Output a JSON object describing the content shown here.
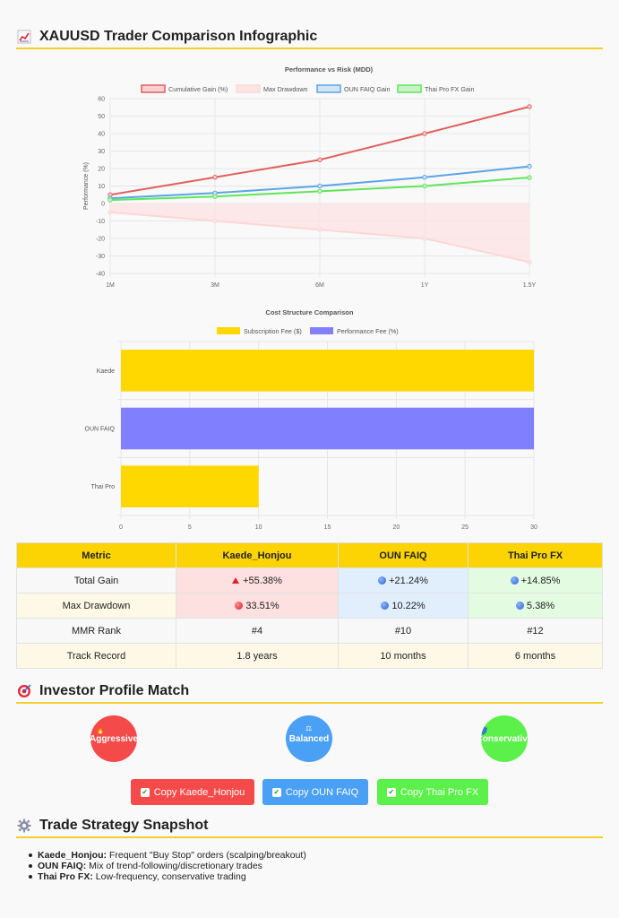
{
  "header": {
    "icon": "chart-increasing-icon",
    "title": "XAUUSD Trader Comparison Infographic"
  },
  "chart_data": [
    {
      "type": "line",
      "title": "Performance vs Risk (MDD)",
      "ylabel": "Performance (%)",
      "xlabel": "",
      "categories": [
        "1M",
        "3M",
        "6M",
        "1Y",
        "1.5Y"
      ],
      "ylim": [
        -40,
        60
      ],
      "yticks": [
        60,
        50,
        40,
        30,
        20,
        10,
        0,
        -10,
        -20,
        -30,
        -40
      ],
      "legend_position": "top",
      "grid": true,
      "series": [
        {
          "name": "Cumulative Gain (%)",
          "color": "#e0605e",
          "fill": "#f8d0cf",
          "values": [
            5,
            15,
            25,
            40,
            55.38
          ]
        },
        {
          "name": "Max Drawdown",
          "color": "#fdd7d7",
          "fill": "#fde4e4",
          "values": [
            -5,
            -10,
            -15,
            -20,
            -33.51
          ],
          "filled": true
        },
        {
          "name": "OUN FAIQ Gain",
          "color": "#5aa5e6",
          "fill": "#d4e4f3",
          "values": [
            3,
            6,
            10,
            15,
            21.24
          ]
        },
        {
          "name": "Thai Pro FX Gain",
          "color": "#5ee65a",
          "fill": "#c9f2c7",
          "values": [
            2,
            4,
            7,
            10,
            14.85
          ]
        }
      ]
    },
    {
      "type": "bar",
      "orientation": "horizontal",
      "title": "Cost Structure Comparison",
      "categories": [
        "Kaede",
        "OUN FAIQ",
        "Thai Pro"
      ],
      "xlim": [
        0,
        30
      ],
      "xticks": [
        0,
        5,
        10,
        15,
        20,
        25,
        30
      ],
      "legend_position": "top",
      "grid": true,
      "series": [
        {
          "name": "Subscription Fee ($)",
          "color": "#ffd800",
          "values": [
            30,
            null,
            10
          ]
        },
        {
          "name": "Performance Fee (%)",
          "color": "#8080ff",
          "values": [
            null,
            30,
            null
          ]
        }
      ]
    }
  ],
  "table": {
    "headers": [
      "Metric",
      "Kaede_Honjou",
      "OUN FAIQ",
      "Thai Pro FX"
    ],
    "rows": [
      {
        "metric": "Total Gain",
        "kaede": "+55.38%",
        "oun": "+21.24%",
        "thai": "+14.85%"
      },
      {
        "metric": "Max Drawdown",
        "kaede": "33.51%",
        "oun": "10.22%",
        "thai": "5.38%"
      },
      {
        "metric": "MMR Rank",
        "kaede": "#4",
        "oun": "#10",
        "thai": "#12"
      },
      {
        "metric": "Track Record",
        "kaede": "1.8 years",
        "oun": "10 months",
        "thai": "6 months"
      }
    ]
  },
  "profile": {
    "icon": "direct-hit-icon",
    "title": "Investor Profile Match",
    "circles": [
      {
        "label": "Aggressive",
        "color": "#f44a4a",
        "icon": "fire-icon"
      },
      {
        "label": "Balanced",
        "color": "#4aa0f4",
        "icon": "scales-icon"
      },
      {
        "label": "Conservative",
        "color": "#5cf04a",
        "icon": "shield-icon"
      }
    ],
    "buttons": [
      {
        "label": "Copy Kaede_Honjou",
        "color": "#f44a4a"
      },
      {
        "label": "Copy OUN FAIQ",
        "color": "#4aa0f4"
      },
      {
        "label": "Copy Thai Pro FX",
        "color": "#5cf04a"
      }
    ]
  },
  "strategy": {
    "icon": "gear-icon",
    "title": "Trade Strategy Snapshot",
    "items": [
      {
        "name": "Kaede_Honjou:",
        "text": "Frequent \"Buy Stop\" orders (scalping/breakout)"
      },
      {
        "name": "OUN FAIQ:",
        "text": "Mix of trend-following/discretionary trades"
      },
      {
        "name": "Thai Pro FX:",
        "text": "Low-frequency, conservative trading"
      }
    ]
  }
}
